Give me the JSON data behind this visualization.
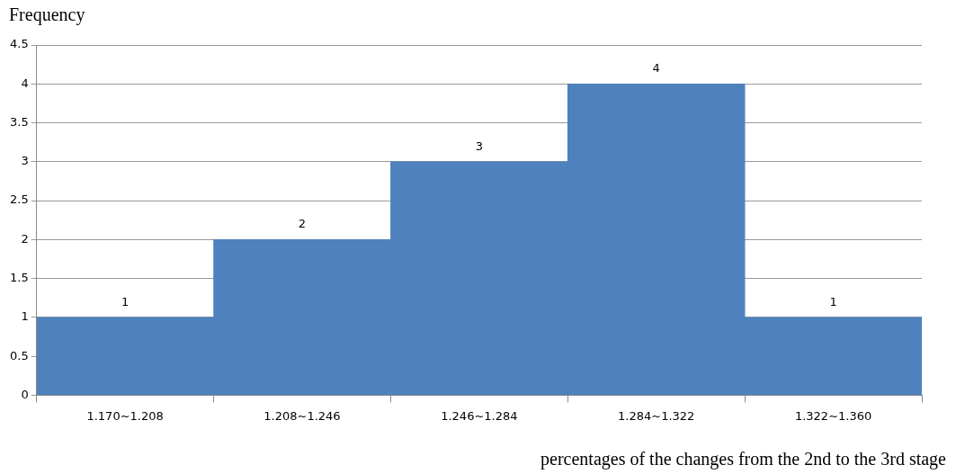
{
  "chart_data": {
    "type": "bar",
    "ylabel": "Frequency",
    "xlabel": "percentages of the changes from the 2nd to the 3rd stage",
    "categories": [
      "1.170~1.208",
      "1.208~1.246",
      "1.246~1.284",
      "1.284~1.322",
      "1.322~1.360"
    ],
    "values": [
      1,
      2,
      3,
      4,
      1
    ],
    "color": "#4f81bd",
    "ylim": [
      0,
      4.5
    ],
    "yticks": [
      0,
      0.5,
      1,
      1.5,
      2,
      2.5,
      3,
      3.5,
      4,
      4.5
    ],
    "grid": "y",
    "data_labels": true,
    "legend": false
  }
}
